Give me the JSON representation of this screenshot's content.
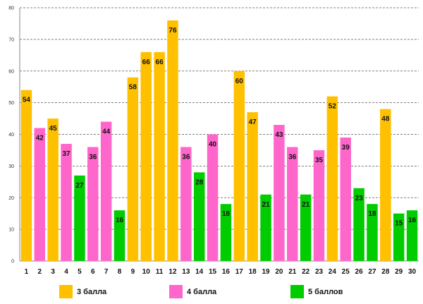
{
  "chart_data": {
    "type": "bar",
    "title": "",
    "xlabel": "",
    "ylabel": "",
    "ylim": [
      0,
      80
    ],
    "yticks": [
      0,
      10,
      20,
      30,
      40,
      50,
      60,
      70,
      80
    ],
    "grid": true,
    "legend_position": "bottom",
    "categories": [
      "1",
      "2",
      "3",
      "4",
      "5",
      "6",
      "7",
      "8",
      "9",
      "10",
      "11",
      "12",
      "13",
      "14",
      "15",
      "16",
      "17",
      "18",
      "19",
      "20",
      "21",
      "22",
      "23",
      "24",
      "25",
      "26",
      "27",
      "28",
      "29",
      "30"
    ],
    "values": [
      54,
      42,
      45,
      37,
      27,
      36,
      44,
      16,
      58,
      66,
      66,
      76,
      36,
      28,
      40,
      18,
      60,
      47,
      21,
      43,
      36,
      21,
      35,
      52,
      39,
      23,
      18,
      48,
      15,
      16
    ],
    "series_index": [
      0,
      1,
      0,
      1,
      2,
      1,
      1,
      2,
      0,
      0,
      0,
      0,
      1,
      2,
      1,
      2,
      0,
      0,
      2,
      1,
      1,
      2,
      1,
      0,
      1,
      2,
      2,
      0,
      2,
      2
    ],
    "series": [
      {
        "name": "3 балла",
        "color": "#FFC000"
      },
      {
        "name": "4 балла",
        "color": "#FF66CC"
      },
      {
        "name": "5 баллов",
        "color": "#00CC00"
      }
    ]
  }
}
